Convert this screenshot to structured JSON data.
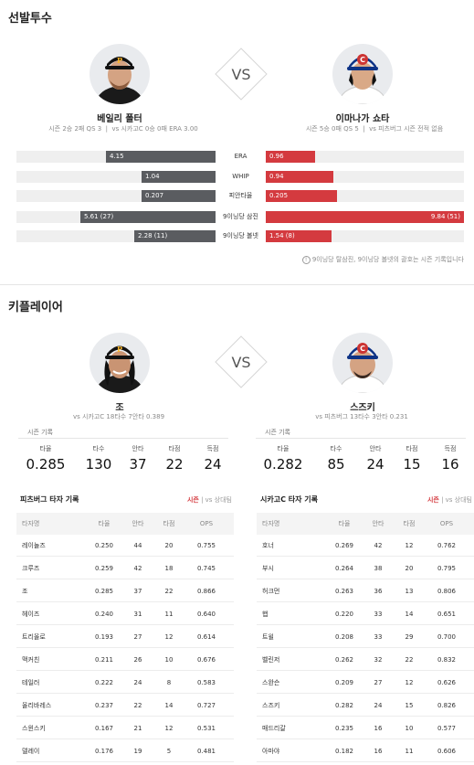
{
  "starting_pitchers": {
    "title": "선발투수",
    "vs": "VS",
    "home": {
      "name": "베일리 폴터",
      "season": "시즌 2승 2패 QS 3",
      "vs_record": "vs 시카고C 0승 0패 ERA 3.00",
      "team": "pirates",
      "accent": "#fdb827"
    },
    "away": {
      "name": "이마나가 쇼타",
      "season": "시즌 5승 0패 QS 5",
      "vs_record": "vs 피츠버그 시즌 전적 없음",
      "team": "cubs",
      "accent": "#0e3386"
    },
    "comparison": [
      {
        "label": "ERA",
        "left": "4.15",
        "right": "0.96",
        "left_frac": 0.55,
        "right_frac": 0.25
      },
      {
        "label": "WHIP",
        "left": "1.04",
        "right": "0.94",
        "left_frac": 0.37,
        "right_frac": 0.34
      },
      {
        "label": "피안타율",
        "left": "0.207",
        "right": "0.205",
        "left_frac": 0.37,
        "right_frac": 0.36
      },
      {
        "label": "9이닝당 삼진",
        "left": "5.61 (27)",
        "right": "9.84 (51)",
        "left_frac": 0.68,
        "right_frac": 1.0
      },
      {
        "label": "9이닝당 볼넷",
        "left": "2.28 (11)",
        "right": "1.54 (8)",
        "left_frac": 0.41,
        "right_frac": 0.33
      }
    ],
    "note_icon": "info-icon",
    "note": "9이닝당 탈삼진, 9이닝당 볼넷의 괄호는 시즌 기록입니다",
    "colors": {
      "home_bar": "#5a5c60",
      "away_bar": "#d43a3f"
    }
  },
  "key_players": {
    "title": "키플레이어",
    "vs": "VS",
    "home": {
      "name": "조",
      "vs_record": "vs 시카고C 18타수 7안타 0.389",
      "record_title": "시즌 기록",
      "labels": [
        "타율",
        "타수",
        "안타",
        "타점",
        "득점"
      ],
      "values": [
        "0.285",
        "130",
        "37",
        "22",
        "24"
      ]
    },
    "away": {
      "name": "스즈키",
      "vs_record": "vs 피츠버그 13타수 3안타 0.231",
      "record_title": "시즌 기록",
      "labels": [
        "타율",
        "타수",
        "안타",
        "타점",
        "득점"
      ],
      "values": [
        "0.282",
        "85",
        "24",
        "15",
        "16"
      ]
    }
  },
  "batter_tables": [
    {
      "title": "피츠버그 타자 기록",
      "tab_active": "시즌",
      "tab_inactive": "vs 상대팀",
      "columns": [
        "타자명",
        "타율",
        "안타",
        "타점",
        "OPS"
      ],
      "rows": [
        [
          "레이놀즈",
          "0.250",
          "44",
          "20",
          "0.755"
        ],
        [
          "크루즈",
          "0.259",
          "42",
          "18",
          "0.745"
        ],
        [
          "조",
          "0.285",
          "37",
          "22",
          "0.866"
        ],
        [
          "헤이즈",
          "0.240",
          "31",
          "11",
          "0.640"
        ],
        [
          "트리올로",
          "0.193",
          "27",
          "12",
          "0.614"
        ],
        [
          "맥커친",
          "0.211",
          "26",
          "10",
          "0.676"
        ],
        [
          "테일러",
          "0.222",
          "24",
          "8",
          "0.583"
        ],
        [
          "올리바레스",
          "0.237",
          "22",
          "14",
          "0.727"
        ],
        [
          "스윈스키",
          "0.167",
          "21",
          "12",
          "0.531"
        ],
        [
          "델레이",
          "0.176",
          "19",
          "5",
          "0.481"
        ]
      ]
    },
    {
      "title": "시카고C 타자 기록",
      "tab_active": "시즌",
      "tab_inactive": "vs 상대팀",
      "columns": [
        "타자명",
        "타율",
        "안타",
        "타점",
        "OPS"
      ],
      "rows": [
        [
          "호너",
          "0.269",
          "42",
          "12",
          "0.762"
        ],
        [
          "부시",
          "0.264",
          "38",
          "20",
          "0.795"
        ],
        [
          "허크먼",
          "0.263",
          "36",
          "13",
          "0.806"
        ],
        [
          "햅",
          "0.220",
          "33",
          "14",
          "0.651"
        ],
        [
          "트윌",
          "0.208",
          "33",
          "29",
          "0.700"
        ],
        [
          "벨린저",
          "0.262",
          "32",
          "22",
          "0.832"
        ],
        [
          "스완슨",
          "0.209",
          "27",
          "12",
          "0.626"
        ],
        [
          "스즈키",
          "0.282",
          "24",
          "15",
          "0.826"
        ],
        [
          "매드리갈",
          "0.235",
          "16",
          "10",
          "0.577"
        ],
        [
          "아마야",
          "0.182",
          "16",
          "11",
          "0.606"
        ]
      ]
    }
  ]
}
